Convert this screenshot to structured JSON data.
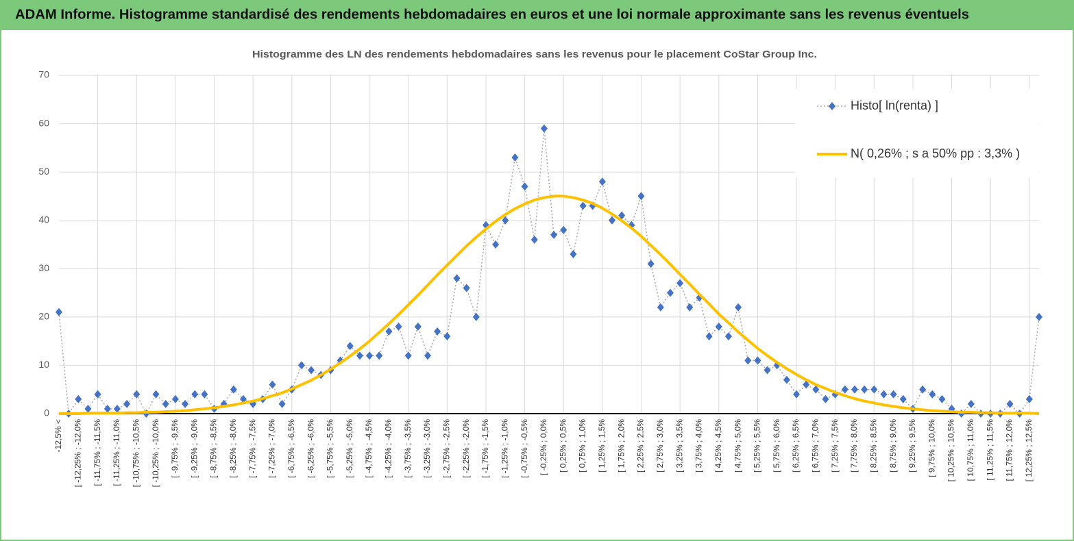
{
  "header": {
    "title": "ADAM Informe. Histogramme standardisé des rendements hebdomadaires en euros et une loi normale approximante sans les revenus éventuels"
  },
  "chart_data": {
    "type": "line",
    "title": "Histogramme des LN des rendements hebdomadaires sans les revenus pour le placement CoStar Group Inc.",
    "categories": [
      "-12,5% <",
      null,
      "[ -12,25% ; -12,0%",
      null,
      "[ -11,75% ; -11,5%",
      null,
      "[ -11,25% ; -11,0%",
      null,
      "[ -10,75% ; -10,5%",
      null,
      "[ -10,25% ; -10,0%",
      null,
      "[ -9,75% ; -9,5%",
      null,
      "[ -9,25% ; -9,0%",
      null,
      "[ -8,75% ; -8,5%",
      null,
      "[ -8,25% ; -8,0%",
      null,
      "[ -7,75% ; -7,5%",
      null,
      "[ -7,25% ; -7,0%",
      null,
      "[ -6,75% ; -6,5%",
      null,
      "[ -6,25% ; -6,0%",
      null,
      "[ -5,75% ; -5,5%",
      null,
      "[ -5,25% ; -5,0%",
      null,
      "[ -4,75% ; -4,5%",
      null,
      "[ -4,25% ; -4,0%",
      null,
      "[ -3,75% ; -3,5%",
      null,
      "[ -3,25% ; -3,0%",
      null,
      "[ -2,75% ; -2,5%",
      null,
      "[ -2,25% ; -2,0%",
      null,
      "[ -1,75% ; -1,5%",
      null,
      "[ -1,25% ; -1,0%",
      null,
      "[ -0,75% ; -0,5%",
      null,
      "[ -0,25% ; 0,0%",
      null,
      "[ 0,25% ; 0,5%",
      null,
      "[ 0,75% ; 1,0%",
      null,
      "[ 1,25% ; 1,5%",
      null,
      "[ 1,75% ; 2,0%",
      null,
      "[ 2,25% ; 2,5%",
      null,
      "[ 2,75% ; 3,0%",
      null,
      "[ 3,25% ; 3,5%",
      null,
      "[ 3,75% ; 4,0%",
      null,
      "[ 4,25% ; 4,5%",
      null,
      "[ 4,75% ; 5,0%",
      null,
      "[ 5,25% ; 5,5%",
      null,
      "[ 5,75% ; 6,0%",
      null,
      "[ 6,25% ; 6,5%",
      null,
      "[ 6,75% ; 7,0%",
      null,
      "[ 7,25% ; 7,5%",
      null,
      "[ 7,75% ; 8,0%",
      null,
      "[ 8,25% ; 8,5%",
      null,
      "[ 8,75% ; 9,0%",
      null,
      "[ 9,25% ; 9,5%",
      null,
      "[ 9,75% ; 10,0%",
      null,
      "[ 10,25% ; 10,5%",
      null,
      "[ 10,75% ; 11,0%",
      null,
      "[ 11,25% ; 11,5%",
      null,
      "[ 11,75% ; 12,0%",
      null,
      "[ 12,25% ; 12,5%",
      null
    ],
    "series": [
      {
        "name": "Histo[ ln(renta) ]",
        "color": "#4472c4",
        "line_color": "#a6a6a6",
        "line": "dotted",
        "marker": "diamond",
        "values": [
          21,
          0,
          3,
          1,
          4,
          1,
          1,
          2,
          4,
          0,
          4,
          2,
          3,
          2,
          4,
          4,
          1,
          2,
          5,
          3,
          2,
          3,
          6,
          2,
          5,
          10,
          9,
          8,
          9,
          11,
          14,
          12,
          12,
          12,
          17,
          18,
          12,
          18,
          12,
          17,
          16,
          28,
          26,
          20,
          39,
          35,
          40,
          53,
          47,
          36,
          59,
          37,
          38,
          33,
          43,
          43,
          48,
          40,
          41,
          39,
          45,
          31,
          22,
          25,
          27,
          22,
          24,
          16,
          18,
          16,
          22,
          11,
          11,
          9,
          10,
          7,
          4,
          6,
          5,
          3,
          4,
          5,
          5,
          5,
          5,
          4,
          4,
          3,
          1,
          5,
          4,
          3,
          1,
          0,
          2,
          0,
          0,
          0,
          2,
          0,
          3,
          20
        ]
      },
      {
        "name": "N( 0,26% ; s a 50% pp : 3,3% )",
        "color": "#ffc000",
        "line": "solid",
        "values": [
          0.0,
          0.0,
          0.0,
          0.1,
          0.1,
          0.1,
          0.1,
          0.2,
          0.2,
          0.3,
          0.3,
          0.4,
          0.5,
          0.6,
          0.8,
          1.0,
          1.2,
          1.5,
          1.8,
          2.2,
          2.6,
          3.1,
          3.7,
          4.3,
          5.1,
          6.0,
          6.9,
          8.0,
          9.2,
          10.5,
          11.9,
          13.4,
          15.0,
          16.8,
          18.6,
          20.5,
          22.5,
          24.5,
          26.6,
          28.7,
          30.7,
          32.7,
          34.7,
          36.5,
          38.2,
          39.8,
          41.2,
          42.4,
          43.4,
          44.2,
          44.7,
          45.0,
          45.0,
          44.7,
          44.2,
          43.5,
          42.5,
          41.3,
          39.9,
          38.4,
          36.7,
          34.8,
          32.9,
          30.9,
          28.8,
          26.8,
          24.7,
          22.7,
          20.6,
          18.8,
          16.9,
          15.2,
          13.5,
          12.0,
          10.6,
          9.3,
          8.1,
          7.0,
          6.0,
          5.2,
          4.4,
          3.7,
          3.1,
          2.6,
          2.2,
          1.8,
          1.5,
          1.2,
          1.0,
          0.8,
          0.6,
          0.5,
          0.4,
          0.3,
          0.3,
          0.2,
          0.2,
          0.1,
          0.1,
          0.1,
          0.1,
          0.0
        ]
      }
    ],
    "ylim": [
      0,
      70
    ],
    "yticks": [
      0,
      10,
      20,
      30,
      40,
      50,
      60,
      70
    ],
    "grid": true,
    "legend": "top-right"
  }
}
